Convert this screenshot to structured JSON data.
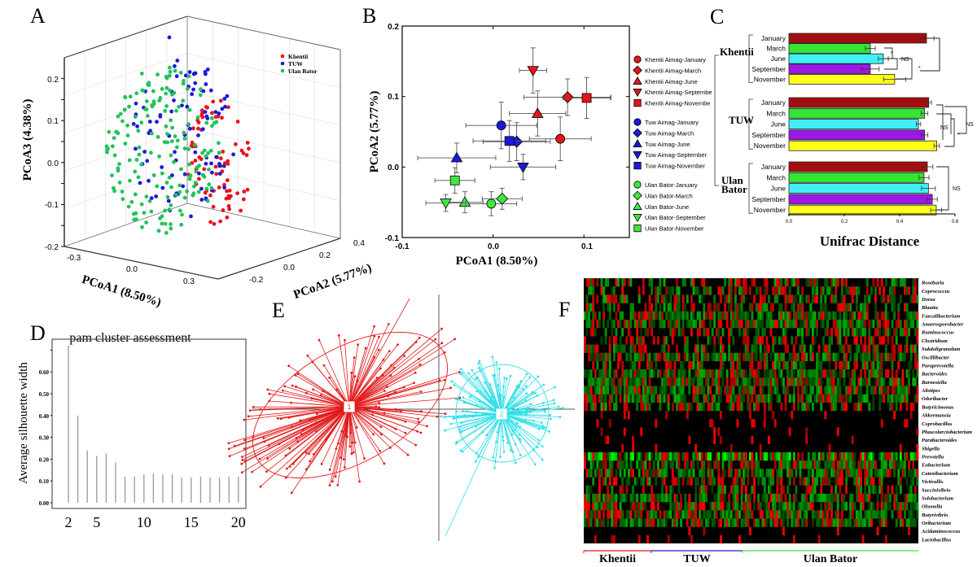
{
  "panels": {
    "a": "A",
    "b": "B",
    "c": "C",
    "d": "D",
    "e": "E",
    "f": "F"
  },
  "colors": {
    "khentii": "#e8141b",
    "tuw": "#1a1adb",
    "ulan_bator": "#22c25a",
    "ub_marker": "#3ee83e",
    "cluster1": "#e31a1c",
    "cluster2": "#33e0e8",
    "jan": "#a30f0f",
    "mar": "#33e633",
    "jun": "#3ff0f5",
    "sep": "#9b19e6",
    "nov": "#ffff19"
  },
  "chart_data": [
    {
      "panel": "A",
      "type": "scatter",
      "title": "",
      "xlabel": "PCoA1 (8.50%)",
      "ylabel": "PCoA2 (5.77%)",
      "zlabel": "PCoA3 (4.38%)",
      "xticks": [
        "-0.3",
        "0.0",
        "0.3"
      ],
      "yticks": [
        "-0.2",
        "0.0",
        "0.2",
        "0.4"
      ],
      "zticks": [
        "0.2",
        "0.1",
        "0.0",
        "-0.1",
        "-0.2"
      ],
      "legend": [
        "Khentii",
        "TUW",
        "Ulan Bator"
      ],
      "legend_placement": "top-right",
      "grid": true
    },
    {
      "panel": "B",
      "type": "scatter",
      "xlabel": "PCoA1 (8.50%)",
      "ylabel": "PCoA2 (5.77%)",
      "xlim": [
        -0.1,
        0.15
      ],
      "ylim": [
        -0.1,
        0.2
      ],
      "xticks": [
        "-0.1",
        "0.0",
        "0.1"
      ],
      "yticks": [
        "0.2",
        "0.1",
        "0.0",
        "-0.1"
      ],
      "legend_placement": "right",
      "series": [
        {
          "name": "Khentii Aimag-January",
          "group": "khentii",
          "shape": "circle",
          "x": 0.074,
          "y": 0.04,
          "xerr": 0.034,
          "yerr": 0.031
        },
        {
          "name": "Khentii Aimag-March",
          "group": "khentii",
          "shape": "diamond",
          "x": 0.082,
          "y": 0.099,
          "xerr": 0.048,
          "yerr": 0.026
        },
        {
          "name": "Khentii Aimag-June",
          "group": "khentii",
          "shape": "triangle",
          "x": 0.049,
          "y": 0.076,
          "xerr": 0.031,
          "yerr": 0.032
        },
        {
          "name": "Khentii Aimag-Septembe",
          "group": "khentii",
          "shape": "triangle-down",
          "x": 0.044,
          "y": 0.137,
          "xerr": 0.015,
          "yerr": 0.032
        },
        {
          "name": "Khentii Aimag-Novembe",
          "group": "khentii",
          "shape": "square",
          "x": 0.103,
          "y": 0.098,
          "xerr": 0.026,
          "yerr": 0.029
        },
        {
          "name": "Tuw Aimag-January",
          "group": "tuw",
          "shape": "circle",
          "x": 0.009,
          "y": 0.059,
          "xerr": 0.039,
          "yerr": 0.033
        },
        {
          "name": "Tuw Aimag-March",
          "group": "tuw",
          "shape": "diamond",
          "x": 0.026,
          "y": 0.036,
          "xerr": 0.037,
          "yerr": 0.027
        },
        {
          "name": "Tuw Aimag-June",
          "group": "tuw",
          "shape": "triangle",
          "x": -0.04,
          "y": 0.013,
          "xerr": 0.043,
          "yerr": 0.021
        },
        {
          "name": "Tuw Aimag-September",
          "group": "tuw",
          "shape": "triangle-down",
          "x": 0.033,
          "y": 0.0,
          "xerr": 0.036,
          "yerr": 0.018
        },
        {
          "name": "Tuw Aimag-November",
          "group": "tuw",
          "shape": "square",
          "x": 0.018,
          "y": 0.037,
          "xerr": 0.04,
          "yerr": 0.029
        },
        {
          "name": "Ulan Bator-January",
          "group": "ulan_bator",
          "shape": "circle",
          "x": -0.002,
          "y": -0.052,
          "xerr": 0.028,
          "yerr": 0.017
        },
        {
          "name": "Ulan Bator-March",
          "group": "ulan_bator",
          "shape": "diamond",
          "x": 0.01,
          "y": -0.045,
          "xerr": 0.022,
          "yerr": 0.015
        },
        {
          "name": "Ulan Bator-June",
          "group": "ulan_bator",
          "shape": "triangle",
          "x": -0.031,
          "y": -0.05,
          "xerr": 0.02,
          "yerr": 0.015
        },
        {
          "name": "Ulan Bator-September",
          "group": "ulan_bator",
          "shape": "triangle-down",
          "x": -0.052,
          "y": -0.051,
          "xerr": 0.022,
          "yerr": 0.012
        },
        {
          "name": "Ulan Bator-November",
          "group": "ulan_bator",
          "shape": "square",
          "x": -0.042,
          "y": -0.019,
          "xerr": 0.022,
          "yerr": 0.018
        }
      ]
    },
    {
      "panel": "C",
      "type": "bar",
      "orientation": "horizontal",
      "xlabel": "Unifrac Distance",
      "xlim": [
        0,
        0.6
      ],
      "xticks": [
        "0.0",
        "0.2",
        "0.4",
        "0.6"
      ],
      "categories": [
        "January",
        "March",
        "June",
        "September",
        "November"
      ],
      "groups": [
        {
          "name": "Khentii",
          "values": [
            0.497,
            0.294,
            0.341,
            0.294,
            0.382
          ],
          "err": [
            0.027,
            0.018,
            0.018,
            0.032,
            0.04
          ]
        },
        {
          "name": "TUW",
          "values": [
            0.505,
            0.49,
            0.468,
            0.49,
            0.534
          ],
          "err": [
            0.01,
            0.012,
            0.008,
            0.012,
            0.01
          ]
        },
        {
          "name": "Ulan Bator",
          "values": [
            0.5,
            0.488,
            0.504,
            0.518,
            0.532
          ],
          "err": [
            0.02,
            0.018,
            0.025,
            0.018,
            0.02
          ]
        }
      ],
      "annotations": [
        {
          "group": "Khentii",
          "text": "NS"
        },
        {
          "group": "Khentii",
          "text": "*"
        },
        {
          "group": "Khentii",
          "text": "*"
        },
        {
          "group": "TUW",
          "text": "NS"
        },
        {
          "group": "TUW",
          "text": "NS"
        },
        {
          "group": "TUW",
          "text": "*"
        },
        {
          "group": "Ulan Bator",
          "text": "NS"
        }
      ]
    },
    {
      "panel": "D",
      "type": "bar",
      "title": "pam cluster assessment",
      "xlabel": "",
      "ylabel": "Average silhouette width",
      "ylim": [
        0,
        0.72
      ],
      "yticks": [
        "0.00",
        "0.10",
        "0.20",
        "0.30",
        "0.40",
        "0.50",
        "0.60"
      ],
      "xticks": [
        "2",
        "5",
        "10",
        "15",
        "20"
      ],
      "categories": [
        2,
        3,
        4,
        5,
        6,
        7,
        8,
        9,
        10,
        11,
        12,
        13,
        14,
        15,
        16,
        17,
        18,
        19,
        20
      ],
      "values": [
        0.72,
        0.4,
        0.24,
        0.215,
        0.225,
        0.185,
        0.12,
        0.12,
        0.13,
        0.135,
        0.13,
        0.13,
        0.115,
        0.115,
        0.12,
        0.115,
        0.115,
        0.12,
        0.12
      ]
    },
    {
      "panel": "E",
      "type": "scatter",
      "clusters": [
        "1",
        "2"
      ]
    },
    {
      "panel": "F",
      "type": "heatmap",
      "rows": [
        "Roseburia",
        "Coprococcus",
        "Dorea",
        "Blautia",
        "Faecalibacterium",
        "Anaerosporobacter",
        "Ruminococcus",
        "Clostridium",
        "Subdoligranulum",
        "Oscillibacter",
        "Paraprevotella",
        "Bacteroides",
        "Barnesiella",
        "Alistipes",
        "Odoribacter",
        "Butyricimonas",
        "Akkermansia",
        "Coprobacillus",
        "Phascolarctobacterium",
        "Parabacteroides",
        "Shigella",
        "Prevotella",
        "Eubacterium",
        "Catenibacterium",
        "Victivallis",
        "Succinivibrio",
        "Solobacterium",
        "Olsenella",
        "Butyrivibrio",
        "Oribacterium",
        "Acidaminococcus",
        "Lactobacillus"
      ],
      "column_groups": [
        "Khentii",
        "TUW",
        "Ulan Bator"
      ],
      "color_scale": [
        "#00ff00",
        "#000000",
        "#ff0000"
      ]
    }
  ]
}
